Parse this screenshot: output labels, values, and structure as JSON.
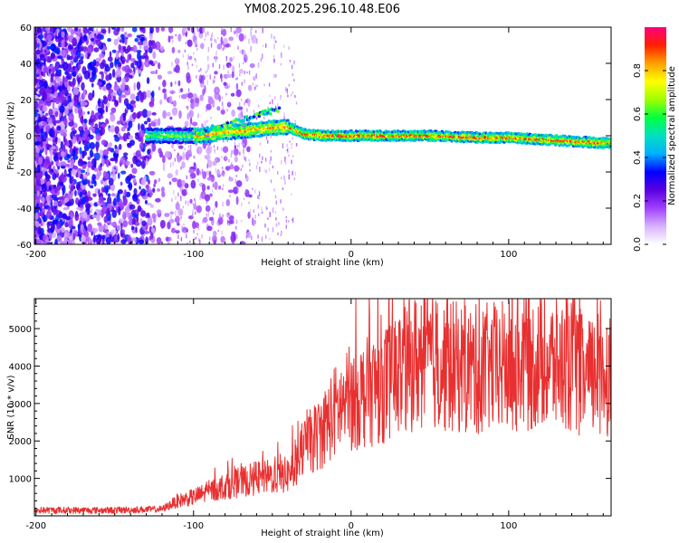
{
  "title": "YM08.2025.296.10.48.E06",
  "chart_data": [
    {
      "type": "heatmap",
      "xlabel": "Height of straight line (km)",
      "ylabel": "Frequency (Hz)",
      "xlim": [
        -201,
        165
      ],
      "ylim": [
        -60,
        60
      ],
      "x_ticks": [
        -200,
        -100,
        0,
        100
      ],
      "y_ticks": [
        60,
        40,
        20,
        0,
        -20,
        -40,
        -60
      ],
      "colorbar": {
        "label": "Normalized spectral amplitude",
        "range": [
          0,
          1
        ],
        "ticks": [
          0.0,
          0.2,
          0.4,
          0.6,
          0.8
        ],
        "colors": [
          "#ffffff",
          "#d9b3ff",
          "#a040ff",
          "#5a00e0",
          "#0000ff",
          "#00b0ff",
          "#00e0c0",
          "#00ff40",
          "#a0ff00",
          "#ffff00",
          "#ffa000",
          "#ff2000",
          "#ff0080"
        ]
      },
      "ridge": {
        "x": [
          -130,
          -110,
          -95,
          -80,
          -65,
          -55,
          -40,
          -30,
          -20,
          0,
          20,
          50,
          80,
          100,
          120,
          140,
          160
        ],
        "freq": [
          0,
          0,
          0,
          2,
          3,
          4,
          5,
          1,
          0,
          0,
          0,
          0,
          -1,
          -1,
          -2,
          -3,
          -4
        ]
      }
    },
    {
      "type": "line",
      "xlabel": "Height of straight line (km)",
      "ylabel": "SNR (10 * v/v)",
      "xlim": [
        -201,
        165
      ],
      "ylim": [
        0,
        5800
      ],
      "x_ticks": [
        -200,
        -100,
        0,
        100
      ],
      "y_ticks": [
        1000,
        2000,
        3000,
        4000,
        5000
      ],
      "color": "#e83030",
      "envelope_x": [
        -200,
        -150,
        -120,
        -110,
        -100,
        -80,
        -60,
        -40,
        -30,
        -20,
        -10,
        0,
        10,
        20,
        30,
        40,
        50,
        60,
        80,
        100,
        120,
        140,
        150,
        160,
        165
      ],
      "envelope_y": [
        150,
        150,
        180,
        400,
        500,
        800,
        1000,
        1100,
        1800,
        2200,
        2800,
        3100,
        3300,
        3500,
        3800,
        4100,
        4200,
        4000,
        3900,
        4000,
        4100,
        4000,
        3600,
        3900,
        3800
      ]
    }
  ]
}
